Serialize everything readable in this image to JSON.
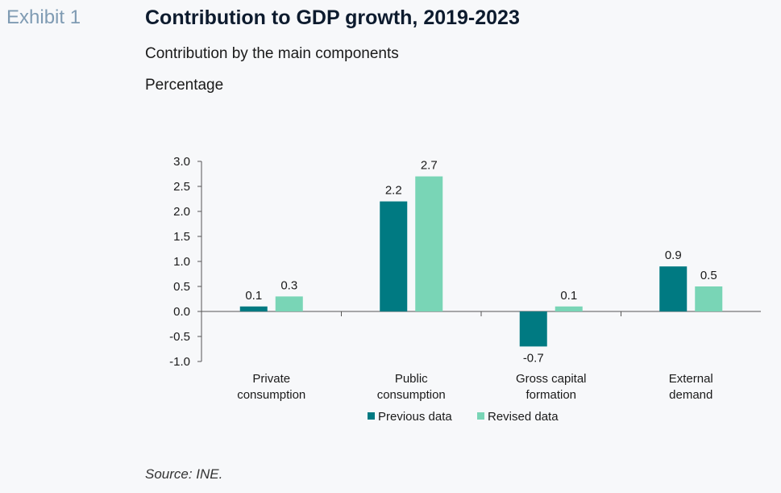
{
  "header": {
    "exhibit": "Exhibit 1",
    "title": "Contribution to GDP growth, 2019-2023",
    "subtitle": "Contribution by the main components",
    "unit": "Percentage"
  },
  "footer": {
    "source": "Source: INE."
  },
  "colors": {
    "previous": "#007a82",
    "revised": "#79d5b6",
    "axis": "#555555"
  },
  "chart_data": {
    "type": "bar",
    "title": "Contribution to GDP growth, 2019-2023",
    "xlabel": "",
    "ylabel": "",
    "ylim": [
      -1.0,
      3.0
    ],
    "yticks": [
      "3.0",
      "2.5",
      "2.0",
      "1.5",
      "1.0",
      "0.5",
      "0.0",
      "-0.5",
      "-1.0"
    ],
    "categories": [
      [
        "Private",
        "consumption"
      ],
      [
        "Public",
        "consumption"
      ],
      [
        "Gross capital",
        "formation"
      ],
      [
        "External",
        "demand"
      ]
    ],
    "series": [
      {
        "name": "Previous data",
        "values": [
          0.1,
          2.2,
          -0.7,
          0.9
        ],
        "labels": [
          "0.1",
          "2.2",
          "-0.7",
          "0.9"
        ]
      },
      {
        "name": "Revised data",
        "values": [
          0.3,
          2.7,
          0.1,
          0.5
        ],
        "labels": [
          "0.3",
          "2.7",
          "0.1",
          "0.5"
        ]
      }
    ],
    "legend": "bottom-center",
    "grid": false
  }
}
